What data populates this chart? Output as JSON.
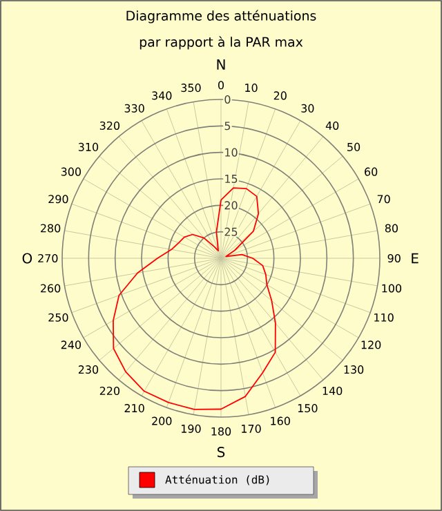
{
  "chart_data": {
    "type": "radar",
    "title": "Diagramme des atténuations",
    "subtitle": "par rapport à la PAR max",
    "categories": [
      "0",
      "10",
      "20",
      "30",
      "40",
      "50",
      "60",
      "70",
      "80",
      "90",
      "100",
      "110",
      "120",
      "130",
      "140",
      "150",
      "160",
      "170",
      "180",
      "190",
      "200",
      "210",
      "220",
      "230",
      "240",
      "250",
      "260",
      "270",
      "280",
      "290",
      "300",
      "310",
      "320",
      "330",
      "340",
      "350"
    ],
    "series": [
      {
        "name": "Atténuation (dB)",
        "color": "#ff0000",
        "values": [
          19,
          16.5,
          16,
          16.5,
          19,
          22,
          27,
          29,
          26,
          24,
          22,
          21,
          20,
          17.5,
          14,
          9.5,
          7,
          3.5,
          1.5,
          1,
          1,
          1,
          2,
          3.5,
          6.5,
          9.5,
          14,
          18,
          20.5,
          21.5,
          22,
          23,
          25,
          27.5,
          28.5,
          25
        ]
      }
    ],
    "ylim": [
      30,
      0
    ],
    "yticks": [
      0,
      5,
      10,
      15,
      20,
      25
    ],
    "grid": true,
    "legend": "bottom",
    "marker": "none",
    "annotations": [
      "N",
      "E",
      "S",
      "O"
    ]
  }
}
